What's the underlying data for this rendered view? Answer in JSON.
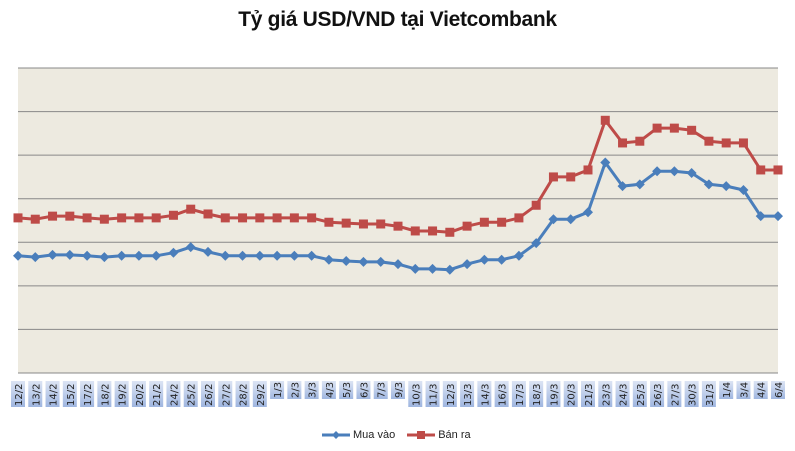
{
  "title": "Tỷ giá USD/VND tại Vietcombank",
  "colors": {
    "plot_background": "#EDEAE0",
    "gridline": "#888888",
    "mua_vao": "#4A7EBB",
    "ban_ra": "#BE4B48",
    "tick_label_bg_top": "#DCE4F4",
    "tick_label_bg_bottom": "#9FB6E0"
  },
  "legend": {
    "items": [
      {
        "label": "Mua vào",
        "marker": "diamond",
        "color": "#4A7EBB"
      },
      {
        "label": "Bán ra",
        "marker": "square",
        "color": "#BE4B48"
      }
    ]
  },
  "chart_data": {
    "type": "line",
    "title": "Tỷ giá USD/VND tại Vietcombank",
    "xlabel": "",
    "ylabel": "",
    "y_axis_labels_visible": false,
    "ylim": [
      0,
      7
    ],
    "y_units_note": "relative gridline units (no y tick labels shown)",
    "grid": true,
    "gridlines": 8,
    "legend_position": "bottom",
    "categories": [
      "12/2",
      "13/2",
      "14/2",
      "15/2",
      "17/2",
      "18/2",
      "19/2",
      "20/2",
      "21/2",
      "24/2",
      "25/2",
      "26/2",
      "27/2",
      "28/2",
      "29/2",
      "1/3",
      "2/3",
      "3/3",
      "4/3",
      "5/3",
      "6/3",
      "7/3",
      "9/3",
      "10/3",
      "11/3",
      "12/3",
      "13/3",
      "14/3",
      "16/3",
      "17/3",
      "18/3",
      "19/3",
      "20/3",
      "21/3",
      "23/3",
      "24/3",
      "25/3",
      "26/3",
      "27/3",
      "30/3",
      "31/3",
      "1/4",
      "3/4",
      "4/4",
      "6/4"
    ],
    "series": [
      {
        "name": "Mua vào",
        "marker": "diamond",
        "color": "#4A7EBB",
        "values": [
          2.69,
          2.66,
          2.71,
          2.71,
          2.69,
          2.66,
          2.69,
          2.69,
          2.69,
          2.76,
          2.89,
          2.78,
          2.69,
          2.69,
          2.69,
          2.69,
          2.69,
          2.69,
          2.6,
          2.57,
          2.55,
          2.55,
          2.5,
          2.39,
          2.39,
          2.37,
          2.5,
          2.6,
          2.6,
          2.69,
          2.98,
          3.53,
          3.53,
          3.69,
          4.83,
          4.29,
          4.33,
          4.63,
          4.63,
          4.59,
          4.33,
          4.29,
          4.2,
          3.6,
          3.6
        ]
      },
      {
        "name": "Bán ra",
        "marker": "square",
        "color": "#BE4B48",
        "values": [
          3.56,
          3.53,
          3.6,
          3.6,
          3.56,
          3.53,
          3.56,
          3.56,
          3.56,
          3.62,
          3.76,
          3.65,
          3.56,
          3.56,
          3.56,
          3.56,
          3.56,
          3.56,
          3.46,
          3.44,
          3.42,
          3.42,
          3.37,
          3.26,
          3.26,
          3.23,
          3.37,
          3.46,
          3.46,
          3.56,
          3.85,
          4.5,
          4.5,
          4.66,
          5.8,
          5.28,
          5.32,
          5.62,
          5.62,
          5.57,
          5.32,
          5.28,
          5.28,
          4.66,
          4.66
        ]
      }
    ]
  }
}
